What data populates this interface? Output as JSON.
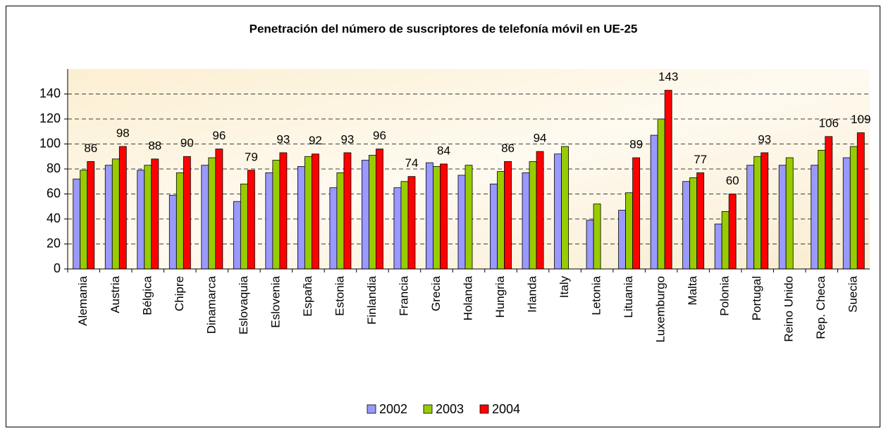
{
  "chart_data": {
    "type": "bar",
    "title": "Penetración del número de suscriptores de telefonía móvil en UE-25",
    "categories": [
      "Alemania",
      "Austria",
      "Bélgica",
      "Chipre",
      "Dinamarca",
      "Eslovaquia",
      "Eslovenia",
      "España",
      "Estonia",
      "Finlandia",
      "Francia",
      "Grecia",
      "Holanda",
      "Hungria",
      "Irlanda",
      "Italy",
      "Letonia",
      "Lituania",
      "Luxemburgo",
      "Malta",
      "Polonia",
      "Portugal",
      "Reino Unido",
      "Rep. Checa",
      "Suecia"
    ],
    "series": [
      {
        "name": "2002",
        "color": "#9999ff",
        "values": [
          72,
          83,
          79,
          59,
          83,
          54,
          77,
          82,
          65,
          87,
          65,
          85,
          75,
          68,
          77,
          92,
          39,
          47,
          107,
          70,
          36,
          83,
          83,
          83,
          89
        ]
      },
      {
        "name": "2003",
        "color": "#99cc00",
        "values": [
          79,
          88,
          83,
          77,
          89,
          68,
          87,
          90,
          77,
          91,
          70,
          82,
          83,
          78,
          86,
          98,
          52,
          61,
          120,
          73,
          46,
          90,
          89,
          95,
          98
        ]
      },
      {
        "name": "2004",
        "color": "#ff0000",
        "show_values": true,
        "values": [
          86,
          98,
          88,
          90,
          96,
          79,
          93,
          92,
          93,
          96,
          74,
          84,
          null,
          86,
          94,
          null,
          null,
          89,
          143,
          77,
          60,
          93,
          null,
          106,
          109
        ]
      }
    ],
    "ylim": [
      0,
      160
    ],
    "yticks": [
      0,
      20,
      40,
      60,
      80,
      100,
      120,
      140
    ],
    "grid": true,
    "legend": "bottom"
  }
}
